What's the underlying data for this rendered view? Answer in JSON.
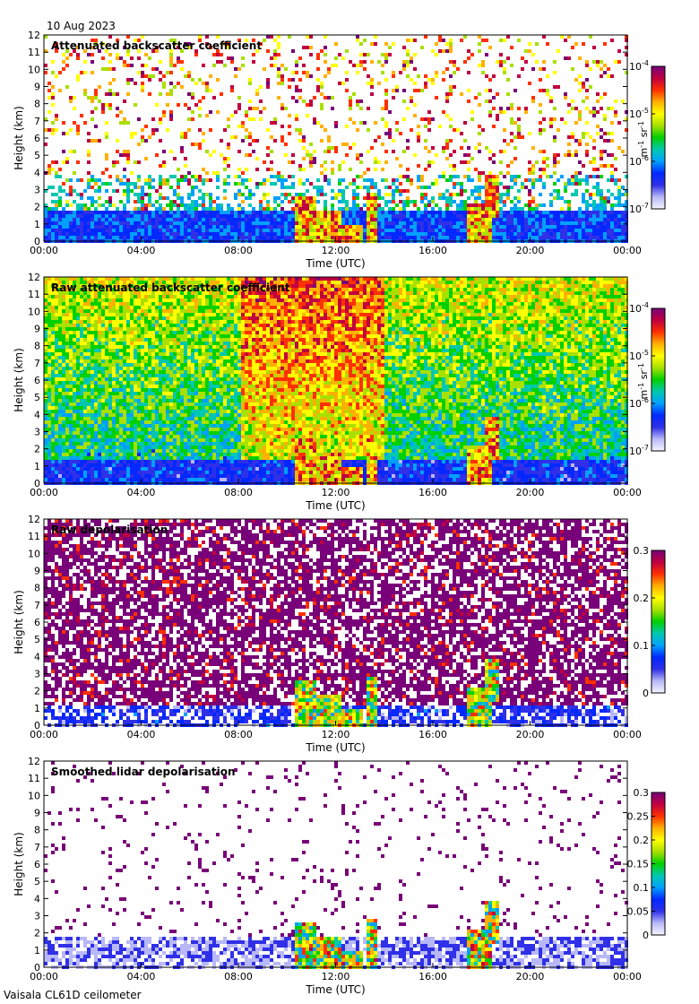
{
  "date": "10 Aug 2023",
  "footer": "Vaisala CL61D ceilometer",
  "colors": {
    "rainbow": [
      "#f4f4ff",
      "#b8b8f8",
      "#3030e8",
      "#0028ff",
      "#00a0ff",
      "#00c8b0",
      "#00d000",
      "#a8e000",
      "#ffff00",
      "#ffb000",
      "#ff3000",
      "#c00040",
      "#780078"
    ]
  },
  "chart_data": [
    {
      "type": "heatmap",
      "title": "Attenuated backscatter coefficient",
      "xlabel": "Time (UTC)",
      "ylabel": "Height (km)",
      "x_ticks": [
        "00:00",
        "04:00",
        "08:00",
        "12:00",
        "16:00",
        "20:00",
        "00:00"
      ],
      "y_ticks": [
        "0",
        "1",
        "2",
        "3",
        "4",
        "5",
        "6",
        "7",
        "8",
        "9",
        "10",
        "11",
        "12"
      ],
      "xlim": [
        0,
        24
      ],
      "ylim": [
        0,
        12
      ],
      "colorbar": {
        "scale": "log",
        "range": [
          1e-07,
          0.0001
        ],
        "ticks": [
          {
            "v": 1e-07,
            "base": "10",
            "exp": "-7"
          },
          {
            "v": 1e-06,
            "base": "10",
            "exp": "-6"
          },
          {
            "v": 1e-05,
            "base": "10",
            "exp": "-5"
          },
          {
            "v": 0.0001,
            "base": "10",
            "exp": "-4"
          }
        ],
        "unit_parts": [
          "m",
          "-1",
          " sr",
          "-1"
        ]
      },
      "pattern": "backscatter"
    },
    {
      "type": "heatmap",
      "title": "Raw attenuated backscatter coefficient",
      "xlabel": "Time (UTC)",
      "ylabel": "Height (km)",
      "x_ticks": [
        "00:00",
        "04:00",
        "08:00",
        "12:00",
        "16:00",
        "20:00",
        "00:00"
      ],
      "y_ticks": [
        "0",
        "1",
        "2",
        "3",
        "4",
        "5",
        "6",
        "7",
        "8",
        "9",
        "10",
        "11",
        "12"
      ],
      "xlim": [
        0,
        24
      ],
      "ylim": [
        0,
        12
      ],
      "colorbar": {
        "scale": "log",
        "range": [
          1e-07,
          0.0001
        ],
        "ticks": [
          {
            "v": 1e-07,
            "base": "10",
            "exp": "-7"
          },
          {
            "v": 1e-06,
            "base": "10",
            "exp": "-6"
          },
          {
            "v": 1e-05,
            "base": "10",
            "exp": "-5"
          },
          {
            "v": 0.0001,
            "base": "10",
            "exp": "-4"
          }
        ],
        "unit_parts": [
          "m",
          "-1",
          " sr",
          "-1"
        ]
      },
      "pattern": "raw_backscatter"
    },
    {
      "type": "heatmap",
      "title": "Raw depolarisation",
      "xlabel": "Time (UTC)",
      "ylabel": "Height (km)",
      "x_ticks": [
        "00:00",
        "04:00",
        "08:00",
        "12:00",
        "16:00",
        "20:00",
        "00:00"
      ],
      "y_ticks": [
        "0",
        "1",
        "2",
        "3",
        "4",
        "5",
        "6",
        "7",
        "8",
        "9",
        "10",
        "11",
        "12"
      ],
      "xlim": [
        0,
        24
      ],
      "ylim": [
        0,
        12
      ],
      "colorbar": {
        "scale": "linear",
        "range": [
          0,
          0.3
        ],
        "ticks": [
          {
            "v": 0,
            "label": "0"
          },
          {
            "v": 0.1,
            "label": "0.1"
          },
          {
            "v": 0.2,
            "label": "0.2"
          },
          {
            "v": 0.3,
            "label": "0.3"
          }
        ]
      },
      "pattern": "raw_depol"
    },
    {
      "type": "heatmap",
      "title": "Smoothed lidar depolarisation",
      "xlabel": "Time (UTC)",
      "ylabel": "Height (km)",
      "x_ticks": [
        "00:00",
        "04:00",
        "08:00",
        "12:00",
        "16:00",
        "20:00",
        "00:00"
      ],
      "y_ticks": [
        "0",
        "1",
        "2",
        "3",
        "4",
        "5",
        "6",
        "7",
        "8",
        "9",
        "10",
        "11",
        "12"
      ],
      "xlim": [
        0,
        24
      ],
      "ylim": [
        0,
        12
      ],
      "colorbar": {
        "scale": "linear",
        "range": [
          0,
          0.3
        ],
        "ticks": [
          {
            "v": 0,
            "label": "0"
          },
          {
            "v": 0.05,
            "label": "0.05"
          },
          {
            "v": 0.1,
            "label": "0.1"
          },
          {
            "v": 0.15,
            "label": "0.15"
          },
          {
            "v": 0.2,
            "label": "0.2"
          },
          {
            "v": 0.25,
            "label": "0.25"
          },
          {
            "v": 0.3,
            "label": "0.3"
          }
        ]
      },
      "pattern": "smooth_depol"
    }
  ]
}
